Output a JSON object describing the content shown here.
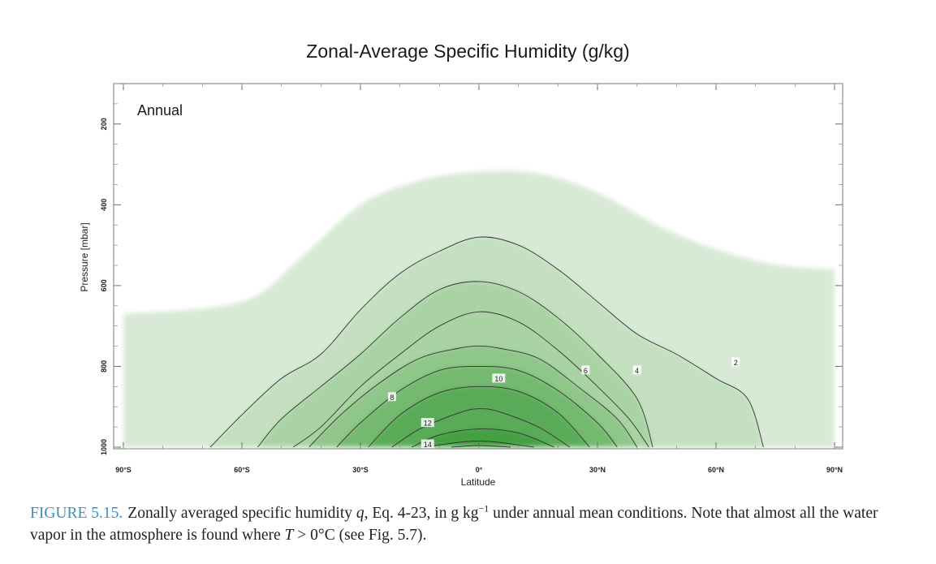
{
  "chart_data": {
    "type": "area",
    "title": "Zonal-Average Specific Humidity (g/kg)",
    "panel_label": "Annual",
    "xlabel": "Latitude",
    "ylabel": "Pressure [mbar]",
    "xlim": [
      -90,
      90
    ],
    "ylim": [
      1000,
      100
    ],
    "y_reversed": true,
    "x_ticks": [
      -90,
      -60,
      -30,
      0,
      30,
      60,
      90
    ],
    "x_tick_labels": [
      "90°S",
      "60°S",
      "30°S",
      "0°",
      "30°N",
      "60°N",
      "90°N"
    ],
    "y_ticks": [
      1000,
      800,
      600,
      400,
      200
    ],
    "y_tick_labels": [
      "1000",
      "800",
      "600",
      "400",
      "200"
    ],
    "fill_colors": [
      "#d8ead6",
      "#c4e0c0",
      "#a9d3a4",
      "#8fc689",
      "#74b96f",
      "#5aab58",
      "#45a043"
    ],
    "series": [
      {
        "level": 2,
        "x": [
          -90,
          -60,
          -45,
          -30,
          -15,
          0,
          15,
          30,
          45,
          60,
          75,
          90
        ],
        "y": [
          670,
          640,
          530,
          400,
          340,
          318,
          322,
          370,
          450,
          510,
          548,
          560
        ]
      },
      {
        "level": 3,
        "x": [
          -68,
          -60,
          -50,
          -40,
          -30,
          -20,
          -10,
          0,
          10,
          20,
          30,
          40,
          50,
          60,
          68,
          72
        ],
        "y": [
          1000,
          920,
          830,
          770,
          660,
          570,
          515,
          480,
          500,
          560,
          640,
          720,
          770,
          830,
          880,
          1000
        ]
      },
      {
        "level": 4,
        "x": [
          -56,
          -50,
          -40,
          -30,
          -20,
          -10,
          0,
          10,
          20,
          30,
          40,
          44
        ],
        "y": [
          1000,
          930,
          850,
          770,
          680,
          610,
          590,
          615,
          680,
          770,
          880,
          1000
        ]
      },
      {
        "level": 5,
        "x": [
          -47,
          -40,
          -30,
          -20,
          -10,
          0,
          10,
          20,
          30,
          38,
          43
        ],
        "y": [
          1000,
          950,
          850,
          770,
          700,
          665,
          690,
          760,
          850,
          930,
          1000
        ]
      },
      {
        "level": 6,
        "x": [
          -43,
          -35,
          -25,
          -15,
          -5,
          0,
          5,
          15,
          25,
          35,
          40
        ],
        "y": [
          1000,
          920,
          840,
          780,
          755,
          750,
          755,
          780,
          850,
          930,
          1000
        ]
      },
      {
        "level": 8,
        "x": [
          -36,
          -30,
          -20,
          -10,
          0,
          10,
          20,
          30,
          35
        ],
        "y": [
          1000,
          940,
          860,
          810,
          800,
          810,
          860,
          940,
          1000
        ]
      },
      {
        "level": 10,
        "x": [
          -28,
          -20,
          -10,
          0,
          10,
          20,
          28
        ],
        "y": [
          1000,
          920,
          865,
          850,
          862,
          915,
          1000
        ]
      },
      {
        "level": 12,
        "x": [
          -22,
          -15,
          -5,
          0,
          5,
          15,
          23
        ],
        "y": [
          1000,
          955,
          915,
          905,
          912,
          950,
          1000
        ]
      },
      {
        "level": 13,
        "x": [
          -17,
          -10,
          0,
          10,
          19
        ],
        "y": [
          1000,
          970,
          955,
          965,
          1000
        ]
      },
      {
        "level": 14,
        "x": [
          -14,
          -5,
          0,
          5,
          14
        ],
        "y": [
          1000,
          988,
          985,
          988,
          1000
        ]
      },
      {
        "level": 15,
        "x": [
          -7,
          0,
          8
        ],
        "y": [
          1000,
          996,
          1000
        ]
      }
    ],
    "contour_labels": [
      {
        "text": "2",
        "x": 65,
        "y": 790
      },
      {
        "text": "4",
        "x": 40,
        "y": 810
      },
      {
        "text": "6",
        "x": 27,
        "y": 810
      },
      {
        "text": "8",
        "x": -22,
        "y": 876
      },
      {
        "text": "10",
        "x": 5,
        "y": 830
      },
      {
        "text": "12",
        "x": -13,
        "y": 940
      },
      {
        "text": "14",
        "x": -13,
        "y": 993
      }
    ]
  },
  "caption": {
    "label": "FIGURE 5.15.",
    "text_before_q": "Zonally averaged specific humidity ",
    "q_symbol": "q",
    "text_after_q": ", Eq. 4-23, in g kg",
    "superscript": "−1",
    "text_after_sup": " under annual mean conditions. Note that almost all the water vapor in the atmosphere is found where ",
    "t_symbol": "T",
    "text_end": " > 0°C (see Fig. 5.7)."
  }
}
